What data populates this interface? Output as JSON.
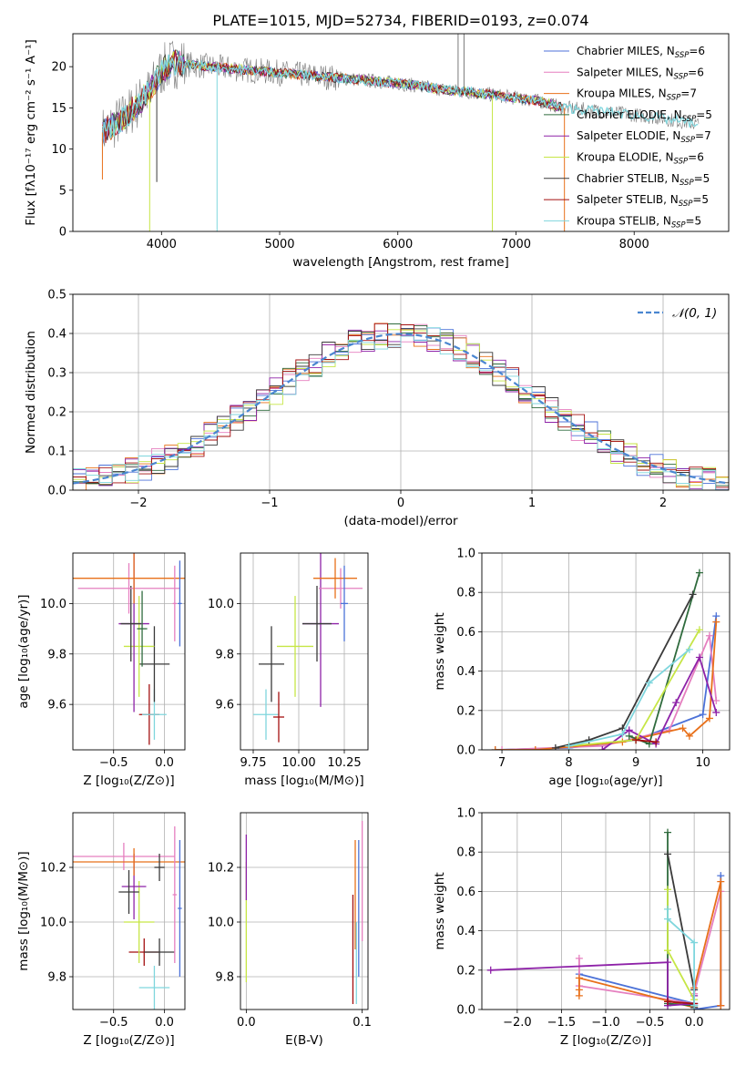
{
  "title": "PLATE=1015, MJD=52734, FIBERID=0193, z=0.074",
  "colors": {
    "royalblue": "#4c72d8",
    "pink": "#e57fbf",
    "orange": "#e8701a",
    "darkgreen": "#2f6b3d",
    "purple": "#8e22a8",
    "yellowgreen": "#c6e646",
    "darkgray": "#3a3a3a",
    "darkred": "#a30f0f",
    "cyan": "#7fd6dd",
    "spectrum": "#7a7a7a",
    "gauss": "#4a86d0"
  },
  "chart_data": [
    {
      "type": "line",
      "name": "spectrum",
      "xlabel": "wavelength [Angstrom, rest frame]",
      "ylabel": "Flux [fλ10⁻¹⁷ erg cm⁻² s⁻¹ A⁻¹]",
      "xlim": [
        3250,
        8800
      ],
      "ylim": [
        0,
        24
      ],
      "xticks": [
        "4000",
        "5000",
        "6000",
        "7000",
        "8000"
      ],
      "yticks": [
        "0",
        "5",
        "10",
        "15",
        "20"
      ],
      "legend_position": "top-right",
      "legend": [
        {
          "label": "Chabrier MILES, N",
          "sub": "SSP",
          "suffix": "=6",
          "color": "royalblue"
        },
        {
          "label": "Salpeter MILES, N",
          "sub": "SSP",
          "suffix": "=6",
          "color": "pink"
        },
        {
          "label": "Kroupa MILES, N",
          "sub": "SSP",
          "suffix": "=7",
          "color": "orange"
        },
        {
          "label": "Chabrier ELODIE, N",
          "sub": "SSP",
          "suffix": "=5",
          "color": "darkgreen"
        },
        {
          "label": "Salpeter ELODIE, N",
          "sub": "SSP",
          "suffix": "=7",
          "color": "purple"
        },
        {
          "label": "Kroupa ELODIE, N",
          "sub": "SSP",
          "suffix": "=6",
          "color": "yellowgreen"
        },
        {
          "label": "Chabrier STELIB, N",
          "sub": "SSP",
          "suffix": "=5",
          "color": "darkgray"
        },
        {
          "label": "Salpeter STELIB, N",
          "sub": "SSP",
          "suffix": "=5",
          "color": "darkred"
        },
        {
          "label": "Kroupa STELIB, N",
          "sub": "SSP",
          "suffix": "=5",
          "color": "cyan"
        }
      ],
      "continuum": {
        "x": [
          3500,
          3700,
          3900,
          4000,
          4100,
          4400,
          4800,
          5200,
          5600,
          6000,
          6400,
          6800,
          7200,
          7400,
          7800,
          8200,
          8550
        ],
        "y": [
          12,
          14,
          17,
          19.5,
          20.5,
          20,
          19.5,
          19,
          18.5,
          18,
          17.2,
          16.6,
          15.8,
          15,
          14.5,
          13.8,
          13
        ]
      },
      "spikes": [
        {
          "x": 3900,
          "y": 0,
          "color": "yellowgreen"
        },
        {
          "x": 4470,
          "y": 0,
          "color": "cyan"
        },
        {
          "x": 6800,
          "y": 0,
          "color": "yellowgreen"
        },
        {
          "x": 7410,
          "y": 0,
          "color": "orange"
        },
        {
          "x": 6510,
          "y": 24,
          "color": "spectrum"
        },
        {
          "x": 6560,
          "y": 24,
          "color": "spectrum"
        },
        {
          "x": 3500,
          "y": 6.3,
          "color": "orange"
        },
        {
          "x": 3960,
          "y": 6,
          "color": "darkgray"
        }
      ]
    },
    {
      "type": "line",
      "name": "residual histogram",
      "xlabel": "(data-model)/error",
      "ylabel": "Normed distribution",
      "xlim": [
        -2.5,
        2.5
      ],
      "ylim": [
        0,
        0.5
      ],
      "xticks": [
        "−2",
        "−1",
        "0",
        "1",
        "2"
      ],
      "yticks": [
        "0.0",
        "0.1",
        "0.2",
        "0.3",
        "0.4",
        "0.5"
      ],
      "legend": [
        {
          "label": "𝒩(0, 1)",
          "color": "gauss",
          "dashed": true
        }
      ],
      "legend_position": "top-right",
      "bins_start": -2.5,
      "bin_width": 0.1
    },
    {
      "type": "scatter",
      "name": "age vs Z",
      "xlabel": "Z [log₁₀(Z/Z⊙)]",
      "ylabel": "age  [log₁₀(age/yr)]",
      "xlim": [
        -0.9,
        0.2
      ],
      "ylim": [
        9.42,
        10.2
      ],
      "xticks": [
        "−0.5",
        "0.0"
      ],
      "yticks": [
        "9.6",
        "9.8",
        "10.0"
      ],
      "points": [
        {
          "x": -0.15,
          "y": 9.56,
          "xerr": 0.1,
          "yerr": 0.12,
          "color": "darkred"
        },
        {
          "x": -0.1,
          "y": 9.56,
          "xerr": 0.12,
          "yerr": 0.1,
          "color": "cyan"
        },
        {
          "x": -0.1,
          "y": 9.76,
          "xerr": 0.15,
          "yerr": 0.15,
          "color": "darkgray"
        },
        {
          "x": -0.25,
          "y": 9.83,
          "xerr": 0.15,
          "yerr": 0.2,
          "color": "yellowgreen"
        },
        {
          "x": -0.3,
          "y": 9.92,
          "xerr": 0.15,
          "yerr": 0.35,
          "color": "purple"
        },
        {
          "x": -0.33,
          "y": 9.92,
          "xerr": 0.1,
          "yerr": 0.15,
          "color": "darkgray"
        },
        {
          "x": -0.22,
          "y": 9.9,
          "xerr": 0.05,
          "yerr": 0.15,
          "color": "darkgreen"
        },
        {
          "x": -0.35,
          "y": 10.06,
          "xerr": 0.5,
          "yerr": 0.1,
          "color": "pink"
        },
        {
          "x": -0.3,
          "y": 10.1,
          "xerr": 0.6,
          "yerr": 0.1,
          "color": "orange"
        },
        {
          "x": 0.1,
          "y": 10.0,
          "xerr": 0.02,
          "yerr": 0.15,
          "color": "pink"
        },
        {
          "x": 0.15,
          "y": 10.0,
          "xerr": 0.02,
          "yerr": 0.17,
          "color": "royalblue"
        }
      ]
    },
    {
      "type": "scatter",
      "name": "age vs mass",
      "xlabel": "mass [log₁₀(M/M⊙)]",
      "ylabel": "",
      "xlim": [
        9.68,
        10.38
      ],
      "ylim": [
        9.42,
        10.2
      ],
      "xticks": [
        "9.75",
        "10.00",
        "10.25"
      ],
      "yticks": [
        "9.6",
        "9.8",
        "10.0"
      ],
      "points": [
        {
          "x": 9.82,
          "y": 9.56,
          "xerr": 0.07,
          "yerr": 0.1,
          "color": "cyan"
        },
        {
          "x": 9.89,
          "y": 9.55,
          "xerr": 0.03,
          "yerr": 0.1,
          "color": "darkred"
        },
        {
          "x": 9.85,
          "y": 9.76,
          "xerr": 0.07,
          "yerr": 0.15,
          "color": "darkgray"
        },
        {
          "x": 9.98,
          "y": 9.83,
          "xerr": 0.1,
          "yerr": 0.2,
          "color": "yellowgreen"
        },
        {
          "x": 10.12,
          "y": 9.92,
          "xerr": 0.1,
          "yerr": 0.33,
          "color": "purple"
        },
        {
          "x": 10.1,
          "y": 9.92,
          "xerr": 0.08,
          "yerr": 0.15,
          "color": "darkgray"
        },
        {
          "x": 10.23,
          "y": 10.06,
          "xerr": 0.12,
          "yerr": 0.08,
          "color": "pink"
        },
        {
          "x": 10.2,
          "y": 10.1,
          "xerr": 0.12,
          "yerr": 0.08,
          "color": "orange"
        },
        {
          "x": 10.25,
          "y": 10.0,
          "xerr": 0.02,
          "yerr": 0.15,
          "color": "royalblue"
        }
      ]
    },
    {
      "type": "line",
      "name": "mass weight vs age",
      "xlabel": "age  [log₁₀(age/yr)]",
      "ylabel": "mass weight",
      "xlim": [
        6.7,
        10.4
      ],
      "ylim": [
        0,
        1.0
      ],
      "xticks": [
        "7",
        "8",
        "9",
        "10"
      ],
      "yticks": [
        "0.0",
        "0.2",
        "0.4",
        "0.6",
        "0.8",
        "1.0"
      ],
      "series": [
        {
          "color": "royalblue",
          "x": [
            6.9,
            8.0,
            9.0,
            10.0,
            10.2
          ],
          "y": [
            0,
            0.01,
            0.05,
            0.18,
            0.68
          ]
        },
        {
          "color": "pink",
          "x": [
            7.0,
            8.5,
            9.5,
            10.1,
            10.2
          ],
          "y": [
            0,
            0.02,
            0.1,
            0.58,
            0.25
          ]
        },
        {
          "color": "orange",
          "x": [
            6.9,
            7.5,
            8.8,
            9.7,
            9.8,
            10.1,
            10.2
          ],
          "y": [
            0,
            0,
            0.04,
            0.11,
            0.07,
            0.16,
            0.65
          ]
        },
        {
          "color": "darkgreen",
          "x": [
            8.9,
            9.2,
            9.95
          ],
          "y": [
            0.07,
            0.03,
            0.9
          ]
        },
        {
          "color": "purple",
          "x": [
            8.5,
            8.9,
            9.3,
            9.6,
            9.95,
            10.2
          ],
          "y": [
            0,
            0.1,
            0.03,
            0.24,
            0.47,
            0.19
          ]
        },
        {
          "color": "yellowgreen",
          "x": [
            8.0,
            9.0,
            9.95
          ],
          "y": [
            0.02,
            0.05,
            0.61
          ]
        },
        {
          "color": "darkgray",
          "x": [
            7.8,
            8.3,
            8.8,
            9.85
          ],
          "y": [
            0.01,
            0.05,
            0.11,
            0.79
          ]
        },
        {
          "color": "darkred",
          "x": [
            9.0,
            9.3
          ],
          "y": [
            0.05,
            0.04
          ]
        },
        {
          "color": "cyan",
          "x": [
            8.0,
            8.8,
            9.2,
            9.8
          ],
          "y": [
            0.02,
            0.08,
            0.34,
            0.51
          ]
        }
      ]
    },
    {
      "type": "scatter",
      "name": "mass vs Z",
      "xlabel": "Z [log₁₀(Z/Z⊙)]",
      "ylabel": "mass [log₁₀(M/M⊙)]",
      "xlim": [
        -0.9,
        0.2
      ],
      "ylim": [
        9.68,
        10.4
      ],
      "xticks": [
        "−0.5",
        "0.0"
      ],
      "yticks": [
        "9.8",
        "10.0",
        "10.2"
      ],
      "points": [
        {
          "x": -0.2,
          "y": 9.89,
          "xerr": 0.15,
          "yerr": 0.05,
          "color": "darkred"
        },
        {
          "x": -0.05,
          "y": 9.89,
          "xerr": 0.15,
          "yerr": 0.05,
          "color": "darkgray"
        },
        {
          "x": -0.1,
          "y": 9.76,
          "xerr": 0.15,
          "yerr": 0.08,
          "color": "cyan"
        },
        {
          "x": -0.25,
          "y": 10.0,
          "xerr": 0.15,
          "yerr": 0.15,
          "color": "yellowgreen"
        },
        {
          "x": -0.3,
          "y": 10.13,
          "xerr": 0.12,
          "yerr": 0.12,
          "color": "purple"
        },
        {
          "x": -0.35,
          "y": 10.11,
          "xerr": 0.1,
          "yerr": 0.08,
          "color": "darkgray"
        },
        {
          "x": -0.4,
          "y": 10.24,
          "xerr": 0.5,
          "yerr": 0.05,
          "color": "pink"
        },
        {
          "x": -0.3,
          "y": 10.22,
          "xerr": 0.6,
          "yerr": 0.05,
          "color": "orange"
        },
        {
          "x": -0.05,
          "y": 10.2,
          "xerr": 0.05,
          "yerr": 0.05,
          "color": "darkgray"
        },
        {
          "x": 0.1,
          "y": 10.1,
          "xerr": 0.02,
          "yerr": 0.25,
          "color": "pink"
        },
        {
          "x": 0.15,
          "y": 10.05,
          "xerr": 0.02,
          "yerr": 0.25,
          "color": "royalblue"
        }
      ]
    },
    {
      "type": "scatter",
      "name": "mass vs E(B-V)",
      "xlabel": "E(B-V)",
      "ylabel": "",
      "xlim": [
        -0.005,
        0.105
      ],
      "ylim": [
        9.68,
        10.4
      ],
      "xticks": [
        "0.0",
        "0.1"
      ],
      "yticks": [
        "9.8",
        "10.0",
        "10.2"
      ],
      "points": [
        {
          "x": 0.0,
          "y": 10.0,
          "xerr": 0,
          "yerr": 0.22,
          "color": "yellowgreen"
        },
        {
          "x": 0.0,
          "y": 10.2,
          "xerr": 0,
          "yerr": 0.12,
          "color": "purple"
        },
        {
          "x": 0.092,
          "y": 9.9,
          "xerr": 0,
          "yerr": 0.2,
          "color": "darkred"
        },
        {
          "x": 0.094,
          "y": 10.1,
          "xerr": 0,
          "yerr": 0.2,
          "color": "orange"
        },
        {
          "x": 0.095,
          "y": 9.85,
          "xerr": 0,
          "yerr": 0.15,
          "color": "cyan"
        },
        {
          "x": 0.097,
          "y": 10.05,
          "xerr": 0,
          "yerr": 0.25,
          "color": "royalblue"
        },
        {
          "x": 0.1,
          "y": 10.15,
          "xerr": 0,
          "yerr": 0.22,
          "color": "pink"
        }
      ]
    },
    {
      "type": "line",
      "name": "mass weight vs Z",
      "xlabel": "Z [log₁₀(Z/Z⊙)]",
      "ylabel": "mass weight",
      "xlim": [
        -2.4,
        0.4
      ],
      "ylim": [
        0,
        1.0
      ],
      "xticks": [
        "−2.0",
        "−1.5",
        "−1.0",
        "−0.5",
        "0.0"
      ],
      "yticks": [
        "0.0",
        "0.2",
        "0.4",
        "0.6",
        "0.8",
        "1.0"
      ],
      "series": [
        {
          "color": "royalblue",
          "x": [
            -1.3,
            0.0,
            0.0,
            0.3,
            0.3
          ],
          "y": [
            0.18,
            0.03,
            0.0,
            0.02,
            0.68
          ]
        },
        {
          "color": "pink",
          "x": [
            -1.3,
            -1.3,
            0.0,
            0.0,
            0.3,
            0.3
          ],
          "y": [
            0.26,
            0.12,
            0.03,
            0.08,
            0.6,
            0.02
          ]
        },
        {
          "color": "orange",
          "x": [
            -1.3,
            -1.3,
            -1.3,
            0.0,
            0.0,
            0.3,
            0.3
          ],
          "y": [
            0.07,
            0.1,
            0.16,
            0.01,
            0.11,
            0.65,
            0.02
          ]
        },
        {
          "color": "darkgreen",
          "x": [
            -0.3,
            -0.3,
            0.0
          ],
          "y": [
            0.9,
            0.03,
            0.02
          ]
        },
        {
          "color": "purple",
          "x": [
            -2.3,
            -0.3,
            -0.3,
            0.0,
            0.0
          ],
          "y": [
            0.2,
            0.24,
            0.02,
            0.03,
            0.07
          ]
        },
        {
          "color": "yellowgreen",
          "x": [
            -0.3,
            -0.3,
            0.0
          ],
          "y": [
            0.61,
            0.3,
            0.05
          ]
        },
        {
          "color": "darkgray",
          "x": [
            -0.3,
            0.0,
            0.0
          ],
          "y": [
            0.79,
            0.1,
            0.01
          ]
        },
        {
          "color": "darkred",
          "x": [
            -0.3,
            0.0
          ],
          "y": [
            0.04,
            0.03
          ]
        },
        {
          "color": "cyan",
          "x": [
            -0.3,
            -0.3,
            0.0,
            0.0
          ],
          "y": [
            0.51,
            0.46,
            0.34,
            0.02
          ]
        }
      ]
    }
  ]
}
